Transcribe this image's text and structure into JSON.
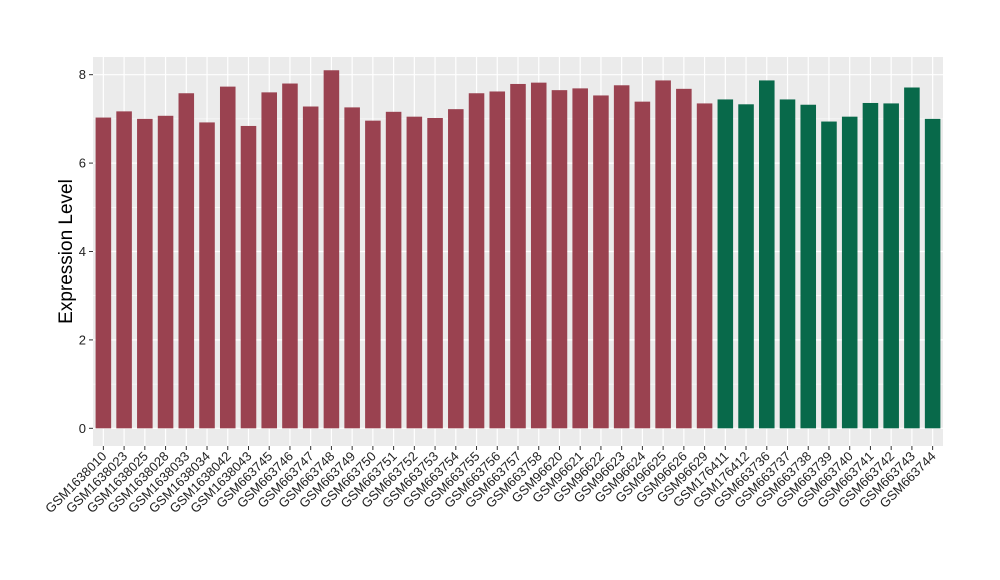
{
  "chart_data": {
    "type": "bar",
    "ylabel": "Expression Level",
    "xlabel": "",
    "ylim": [
      -0.4,
      8.4
    ],
    "yticks": [
      0,
      2,
      4,
      6,
      8
    ],
    "grid": true,
    "legend": "none",
    "colors": {
      "group1": "#9a4250",
      "group2": "#08694a",
      "panel": "#ebebeb",
      "grid": "#ffffff"
    },
    "categories": [
      "GSM1638010",
      "GSM1638023",
      "GSM1638025",
      "GSM1638028",
      "GSM1638033",
      "GSM1638034",
      "GSM1638042",
      "GSM1638043",
      "GSM663745",
      "GSM663746",
      "GSM663747",
      "GSM663748",
      "GSM663749",
      "GSM663750",
      "GSM663751",
      "GSM663752",
      "GSM663753",
      "GSM663754",
      "GSM663755",
      "GSM663756",
      "GSM663757",
      "GSM663758",
      "GSM96620",
      "GSM96621",
      "GSM96622",
      "GSM96623",
      "GSM96624",
      "GSM96625",
      "GSM96626",
      "GSM96629",
      "GSM176411",
      "GSM176412",
      "GSM663736",
      "GSM663737",
      "GSM663738",
      "GSM663739",
      "GSM663740",
      "GSM663741",
      "GSM663742",
      "GSM663743",
      "GSM663744"
    ],
    "values": [
      7.03,
      7.17,
      7.0,
      7.07,
      7.58,
      6.92,
      7.73,
      6.84,
      7.6,
      7.8,
      7.28,
      8.1,
      7.26,
      6.96,
      7.16,
      7.05,
      7.02,
      7.22,
      7.58,
      7.62,
      7.79,
      7.82,
      7.65,
      7.69,
      7.53,
      7.76,
      7.39,
      7.87,
      7.68,
      7.35,
      7.44,
      7.33,
      7.87,
      7.44,
      7.32,
      6.94,
      7.05,
      7.36,
      7.35,
      7.71,
      7.0
    ],
    "groups": [
      "group1",
      "group1",
      "group1",
      "group1",
      "group1",
      "group1",
      "group1",
      "group1",
      "group1",
      "group1",
      "group1",
      "group1",
      "group1",
      "group1",
      "group1",
      "group1",
      "group1",
      "group1",
      "group1",
      "group1",
      "group1",
      "group1",
      "group1",
      "group1",
      "group1",
      "group1",
      "group1",
      "group1",
      "group1",
      "group1",
      "group2",
      "group2",
      "group2",
      "group2",
      "group2",
      "group2",
      "group2",
      "group2",
      "group2",
      "group2",
      "group2"
    ]
  }
}
